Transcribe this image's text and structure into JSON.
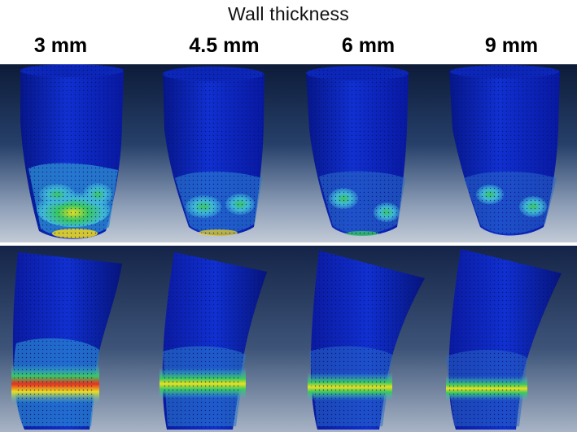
{
  "title": "Wall thickness",
  "columns": [
    "3 mm",
    "4.5 mm",
    "6 mm",
    "9 mm"
  ],
  "colors": {
    "base": "#0a1fb4",
    "mesh": "#05106a",
    "cyan": "#3fb8d8",
    "green": "#3ac860",
    "yellow": "#e8e020",
    "red": "#e83020"
  }
}
